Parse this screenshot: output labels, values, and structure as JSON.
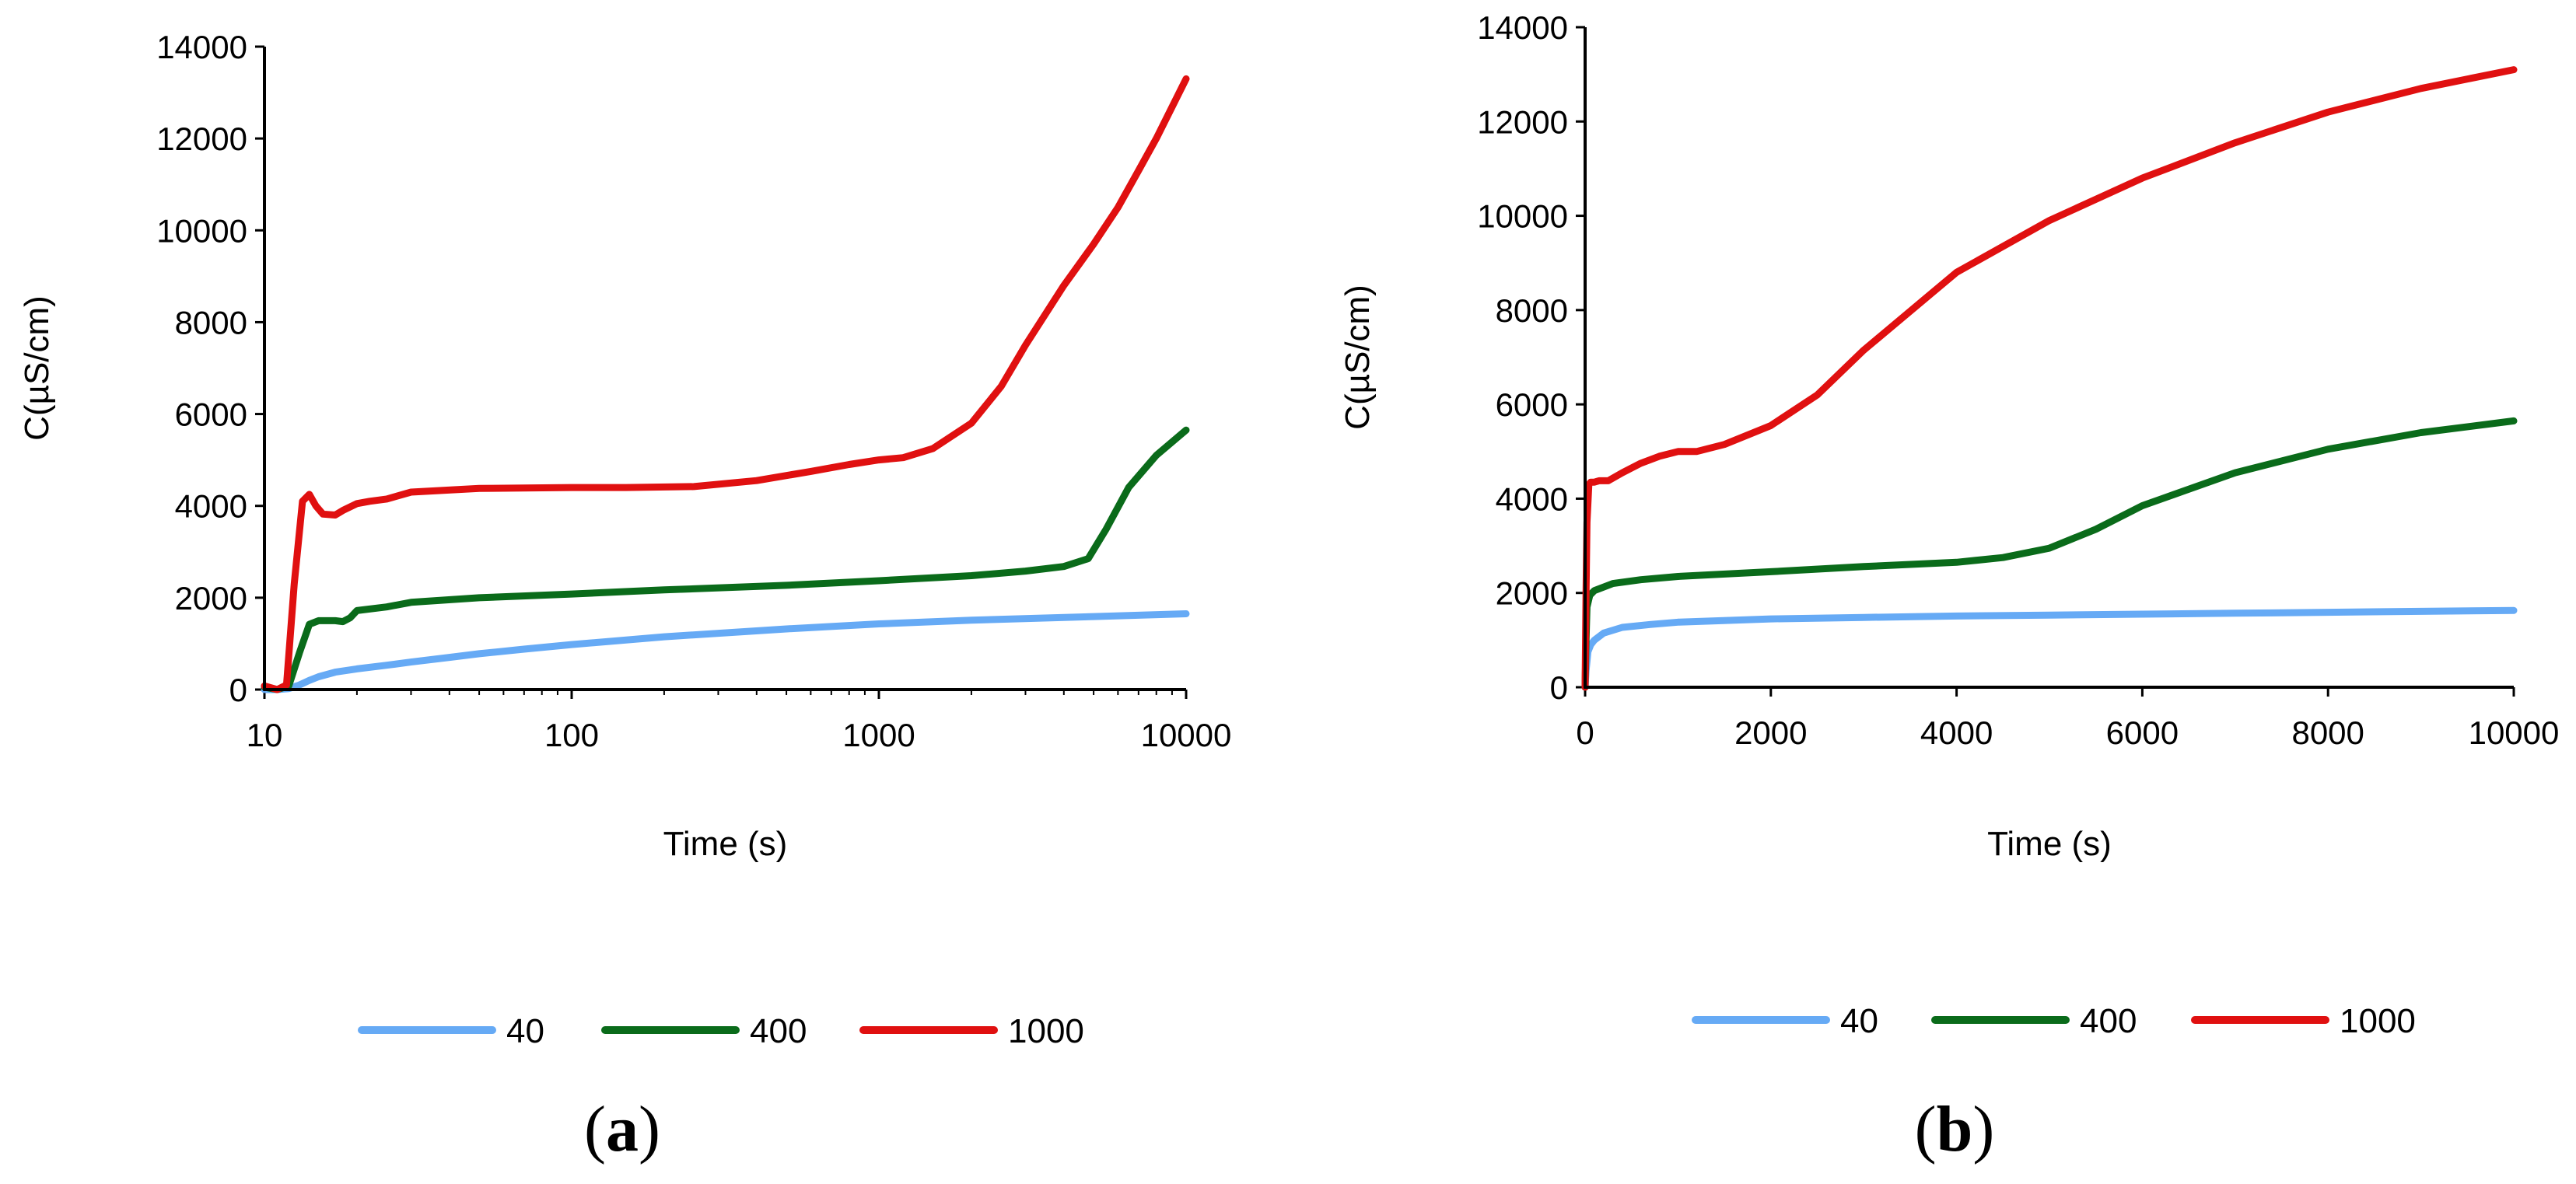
{
  "chart_data": [
    {
      "type": "line",
      "panel_label_parts": [
        "(",
        "a",
        ")"
      ],
      "xlabel": "Time (s)",
      "ylabel": "C(µS/cm)",
      "xscale": "log",
      "xlim": [
        10,
        10000
      ],
      "ylim": [
        0,
        14000
      ],
      "xticks": [
        10,
        100,
        1000,
        10000
      ],
      "xtick_labels": [
        "10",
        "100",
        "1000",
        "10000"
      ],
      "yticks": [
        0,
        2000,
        4000,
        6000,
        8000,
        10000,
        12000,
        14000
      ],
      "ytick_labels": [
        "0",
        "2000",
        "4000",
        "6000",
        "8000",
        "10000",
        "12000",
        "14000"
      ],
      "legend_position": "bottom",
      "series": [
        {
          "name": "40",
          "color": "#66aaf5",
          "x": [
            10,
            11,
            12,
            13,
            14,
            15,
            17,
            20,
            25,
            30,
            40,
            50,
            70,
            100,
            200,
            500,
            1000,
            2000,
            5000,
            10000
          ],
          "y": [
            0,
            0,
            20,
            100,
            200,
            280,
            380,
            450,
            530,
            600,
            700,
            780,
            880,
            980,
            1150,
            1320,
            1430,
            1510,
            1590,
            1650
          ]
        },
        {
          "name": "400",
          "color": "#0a6b1a",
          "x": [
            10,
            11,
            12,
            13,
            14,
            15,
            17,
            18,
            19,
            20,
            25,
            30,
            50,
            100,
            200,
            500,
            1000,
            2000,
            3000,
            4000,
            4800,
            5500,
            6500,
            8000,
            10000
          ],
          "y": [
            50,
            0,
            80,
            800,
            1420,
            1500,
            1500,
            1480,
            1560,
            1720,
            1800,
            1900,
            2000,
            2080,
            2170,
            2270,
            2370,
            2480,
            2580,
            2680,
            2850,
            3500,
            4400,
            5100,
            5650
          ]
        },
        {
          "name": "1000",
          "color": "#e01010",
          "x": [
            10,
            11,
            11.8,
            12.5,
            13.3,
            14,
            14.7,
            15.5,
            17,
            18,
            20,
            22,
            25,
            30,
            50,
            100,
            150,
            250,
            400,
            600,
            800,
            1000,
            1200,
            1500,
            2000,
            2500,
            3000,
            4000,
            5000,
            6000,
            7000,
            8000,
            10000
          ],
          "y": [
            80,
            0,
            100,
            2300,
            4100,
            4250,
            4000,
            3820,
            3800,
            3900,
            4050,
            4100,
            4150,
            4300,
            4380,
            4400,
            4400,
            4420,
            4550,
            4750,
            4900,
            5000,
            5050,
            5250,
            5800,
            6600,
            7500,
            8800,
            9700,
            10500,
            11300,
            12000,
            13300
          ]
        }
      ]
    },
    {
      "type": "line",
      "panel_label_parts": [
        "(",
        "b",
        ")"
      ],
      "xlabel": "Time (s)",
      "ylabel": "C(µS/cm)",
      "xscale": "linear",
      "xlim": [
        0,
        10000
      ],
      "ylim": [
        0,
        14000
      ],
      "xticks": [
        0,
        2000,
        4000,
        6000,
        8000,
        10000
      ],
      "xtick_labels": [
        "0",
        "2000",
        "4000",
        "6000",
        "8000",
        "10000"
      ],
      "yticks": [
        0,
        2000,
        4000,
        6000,
        8000,
        10000,
        12000,
        14000
      ],
      "ytick_labels": [
        "0",
        "2000",
        "4000",
        "6000",
        "8000",
        "10000",
        "12000",
        "14000"
      ],
      "legend_position": "bottom",
      "series": [
        {
          "name": "40",
          "color": "#66aaf5",
          "x": [
            0,
            10,
            30,
            60,
            100,
            200,
            400,
            700,
            1000,
            2000,
            3000,
            4000,
            5000,
            6000,
            7000,
            8000,
            9000,
            10000
          ],
          "y": [
            0,
            350,
            750,
            900,
            1000,
            1150,
            1270,
            1330,
            1380,
            1450,
            1480,
            1510,
            1530,
            1550,
            1570,
            1590,
            1610,
            1630
          ]
        },
        {
          "name": "400",
          "color": "#0a6b1a",
          "x": [
            0,
            10,
            20,
            50,
            100,
            300,
            600,
            1000,
            2000,
            3000,
            4000,
            4500,
            5000,
            5500,
            6000,
            7000,
            8000,
            9000,
            10000
          ],
          "y": [
            0,
            1000,
            1700,
            1950,
            2050,
            2200,
            2280,
            2350,
            2450,
            2560,
            2650,
            2750,
            2950,
            3350,
            3850,
            4550,
            5050,
            5400,
            5650
          ]
        },
        {
          "name": "1000",
          "color": "#e01010",
          "x": [
            0,
            10,
            20,
            40,
            60,
            100,
            150,
            250,
            400,
            600,
            800,
            1000,
            1200,
            1500,
            2000,
            2500,
            3000,
            4000,
            5000,
            6000,
            7000,
            8000,
            9000,
            10000
          ],
          "y": [
            0,
            2000,
            3500,
            4300,
            4350,
            4350,
            4380,
            4380,
            4550,
            4750,
            4900,
            5000,
            5000,
            5150,
            5550,
            6200,
            7150,
            8800,
            9900,
            10800,
            11550,
            12200,
            12700,
            13100
          ]
        }
      ]
    }
  ]
}
